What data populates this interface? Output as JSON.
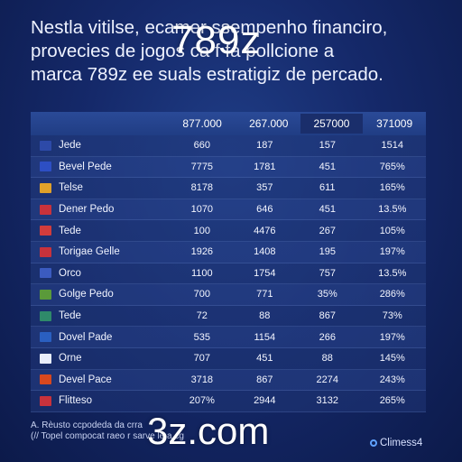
{
  "intro": {
    "line1": "Nestla vitilse, ecamer     ssempenho financiro,",
    "line2": "provecies de  jogos ca       f fa  pollcione a",
    "line3": "marca 789z ee suals estratigiz de percado."
  },
  "brand": "789z",
  "table": {
    "headers": [
      "877.000",
      "267.000",
      "257000",
      "371009"
    ],
    "rows": [
      {
        "flag": "#2d4aa8",
        "name": "Jede",
        "values": [
          "660",
          "187",
          "157",
          "1514"
        ]
      },
      {
        "flag": "#2d4fc4",
        "name": "Bevel Pede",
        "values": [
          "7775",
          "1781",
          "451",
          "765%"
        ]
      },
      {
        "flag": "#e0a12a",
        "name": "Telse",
        "values": [
          "8178",
          "357",
          "611",
          "165%"
        ]
      },
      {
        "flag": "#c8323c",
        "name": "Dener Pedo",
        "values": [
          "1070",
          "646",
          "451",
          "13.5%"
        ]
      },
      {
        "flag": "#d23c3c",
        "name": "Tede",
        "values": [
          "100",
          "4476",
          "267",
          "105%"
        ]
      },
      {
        "flag": "#c8323c",
        "name": "Torigae Gelle",
        "values": [
          "1926",
          "1408",
          "195",
          "197%"
        ]
      },
      {
        "flag": "#3b5bc0",
        "name": "Orco",
        "values": [
          "1100",
          "1754",
          "757",
          "13.5%"
        ]
      },
      {
        "flag": "#5a9a3a",
        "name": "Golge Pedo",
        "values": [
          "700",
          "771",
          "35%",
          "286%"
        ]
      },
      {
        "flag": "#2f8a6a",
        "name": "Tede",
        "values": [
          "72",
          "88",
          "867",
          "73%"
        ]
      },
      {
        "flag": "#2a5fc0",
        "name": "Dovel Pade",
        "values": [
          "535",
          "1154",
          "266",
          "197%"
        ]
      },
      {
        "flag": "#e8eefc",
        "name": "Orne",
        "values": [
          "707",
          "451",
          "88",
          "145%"
        ]
      },
      {
        "flag": "#d8481e",
        "name": "Devel Pace",
        "values": [
          "3718",
          "867",
          "2274",
          "243%"
        ]
      },
      {
        "flag": "#c8323c",
        "name": "Flitteso",
        "values": [
          "207%",
          "2944",
          "3132",
          "265%"
        ]
      }
    ]
  },
  "footer": {
    "line1": "A. Rèusto ccpodeda da crra",
    "line2": "(// Topel compocat raeo r  sarve le a cg"
  },
  "domain": "3z.com",
  "logo": "Climess4"
}
